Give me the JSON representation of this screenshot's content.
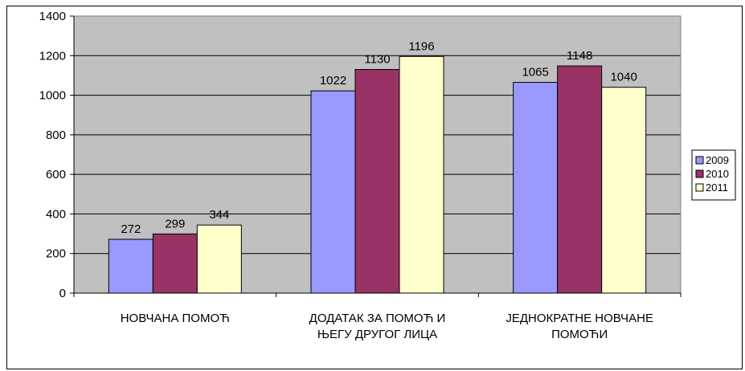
{
  "chart_data": {
    "type": "bar",
    "categories": [
      [
        "НОВЧАНА ПОМОЋ"
      ],
      [
        "ДОДАТАК ЗА ПОМОЋ И",
        "ЊЕГУ ДРУГОГ ЛИЦА"
      ],
      [
        "ЈЕДНОКРАТНЕ НОВЧАНЕ",
        "ПОМОЋИ"
      ]
    ],
    "series": [
      {
        "name": "2009",
        "color": "#9999ff",
        "values": [
          272,
          1022,
          1065
        ]
      },
      {
        "name": "2010",
        "color": "#993366",
        "values": [
          299,
          1130,
          1148
        ]
      },
      {
        "name": "2011",
        "color": "#ffffcc",
        "values": [
          344,
          1196,
          1040
        ]
      }
    ],
    "ylim": [
      0,
      1400
    ],
    "yticks": [
      0,
      200,
      400,
      600,
      800,
      1000,
      1200,
      1400
    ],
    "grid": true,
    "plot_background": "#c0c0c0",
    "legend_position": "right"
  }
}
